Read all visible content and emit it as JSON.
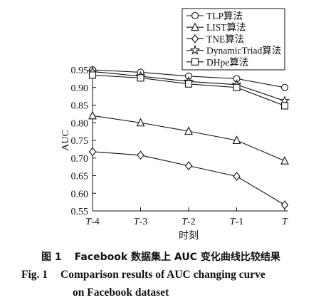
{
  "chart_data": {
    "type": "line",
    "categories": [
      "T-4",
      "T-3",
      "T-2",
      "T-1",
      "T"
    ],
    "xlabel": "时刻",
    "ylabel": "AUC",
    "ylim": [
      0.55,
      0.95
    ],
    "yticks": [
      "0.55",
      "0.60",
      "0.65",
      "0.70",
      "0.75",
      "0.80",
      "0.85",
      "0.90",
      "0.95"
    ],
    "legend_position": "top-right",
    "grid": false,
    "series": [
      {
        "name": "TLP算法",
        "marker": "circle",
        "values": [
          0.95,
          0.943,
          0.932,
          0.925,
          0.9
        ]
      },
      {
        "name": "LIST算法",
        "marker": "triangle",
        "values": [
          0.82,
          0.8,
          0.776,
          0.75,
          0.692
        ]
      },
      {
        "name": "TNE算法",
        "marker": "diamond",
        "values": [
          0.718,
          0.708,
          0.678,
          0.648,
          0.567
        ]
      },
      {
        "name": "DynamicTriad算法",
        "marker": "star",
        "values": [
          0.945,
          0.932,
          0.917,
          0.908,
          0.862
        ]
      },
      {
        "name": "DHpe算法",
        "marker": "square",
        "values": [
          0.935,
          0.927,
          0.91,
          0.9,
          0.848
        ]
      }
    ]
  },
  "caption": {
    "cn_label": "图 1",
    "cn_text": "Facebook 数据集上 AUC 变化曲线比较结果",
    "en_label": "Fig. 1",
    "en_line1": "Comparison results of AUC changing curve",
    "en_line2": "on Facebook dataset"
  }
}
